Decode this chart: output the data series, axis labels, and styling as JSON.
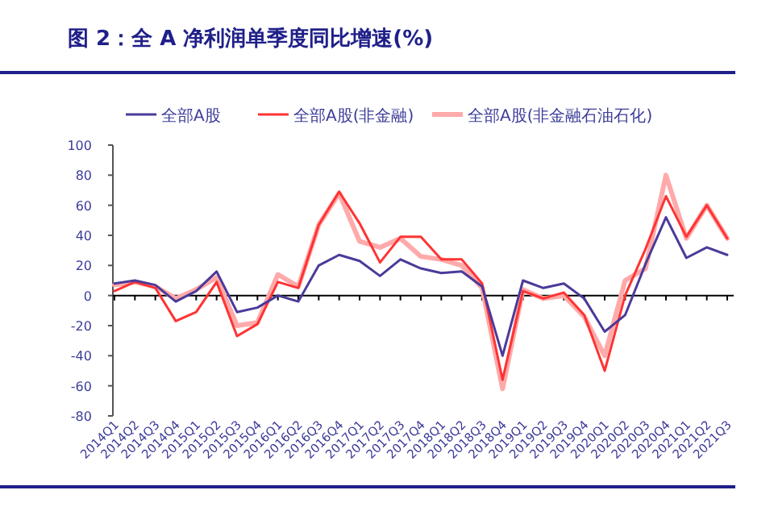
{
  "chart_data": {
    "type": "line",
    "title": "图 2：全 A 净利润单季度同比增速(%)",
    "categories": [
      "2014Q1",
      "2014Q2",
      "2014Q3",
      "2014Q4",
      "2015Q1",
      "2015Q2",
      "2015Q3",
      "2015Q4",
      "2016Q1",
      "2016Q2",
      "2016Q3",
      "2016Q4",
      "2017Q1",
      "2017Q2",
      "2017Q3",
      "2017Q4",
      "2018Q1",
      "2018Q2",
      "2018Q3",
      "2018Q4",
      "2019Q1",
      "2019Q2",
      "2019Q3",
      "2019Q4",
      "2020Q1",
      "2020Q2",
      "2020Q3",
      "2020Q4",
      "2021Q1",
      "2021Q2",
      "2021Q3"
    ],
    "series": [
      {
        "name": "全部A股",
        "color": "#4b3a9a",
        "values": [
          8,
          10,
          7,
          -4,
          3,
          16,
          -11,
          -8,
          0,
          -4,
          20,
          27,
          23,
          13,
          24,
          18,
          15,
          16,
          6,
          -40,
          10,
          5,
          8,
          -2,
          -24,
          -13,
          21,
          52,
          25,
          32,
          27
        ]
      },
      {
        "name": "全部A股(非金融)",
        "color": "#ff3333",
        "values": [
          3,
          9,
          5,
          -17,
          -11,
          9,
          -27,
          -19,
          9,
          5,
          47,
          69,
          48,
          22,
          39,
          39,
          24,
          24,
          8,
          -56,
          3,
          -2,
          2,
          -13,
          -50,
          0,
          31,
          66,
          39,
          60,
          38
        ]
      },
      {
        "name": "全部A股(非金融石油石化)",
        "color": "#ffaaaa",
        "values": [
          7,
          9,
          6,
          -2,
          4,
          12,
          -20,
          -18,
          14,
          6,
          47,
          68,
          36,
          32,
          38,
          26,
          24,
          20,
          5,
          -62,
          4,
          -2,
          0,
          -14,
          -40,
          10,
          18,
          80,
          38,
          60,
          38
        ]
      }
    ],
    "ylim": [
      -80,
      100
    ],
    "yticks": [
      -80,
      -60,
      -40,
      -20,
      0,
      20,
      40,
      60,
      80,
      100
    ],
    "legend": "top",
    "line_style": "solid",
    "marker": "none"
  }
}
